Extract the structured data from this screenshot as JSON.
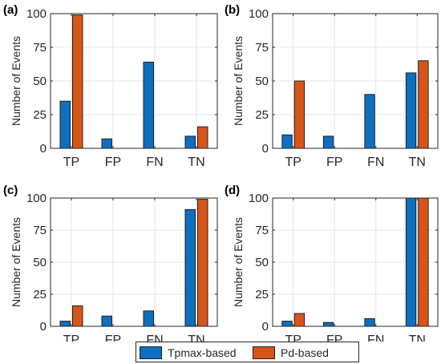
{
  "colors": {
    "series1": "#0e6fc0",
    "series2": "#d85518",
    "grid": "#e6e6e6",
    "axis": "#262626"
  },
  "legend": {
    "placement": "bottom-center",
    "series1": "Tpmax-based",
    "series2": "Pd-based"
  },
  "chart_data": [
    {
      "type": "bar",
      "panel_label": "(a)",
      "ylabel": "Number of Events",
      "categories": [
        "TP",
        "FP",
        "FN",
        "TN"
      ],
      "ylim": [
        0,
        100
      ],
      "yticks": [
        0,
        25,
        50,
        75,
        100
      ],
      "grid": true,
      "series": [
        {
          "name": "Tpmax-based",
          "values": [
            35,
            7,
            64,
            9
          ]
        },
        {
          "name": "Pd-based",
          "values": [
            99,
            0,
            0,
            16
          ]
        }
      ]
    },
    {
      "type": "bar",
      "panel_label": "(b)",
      "ylabel": "Number of Events",
      "categories": [
        "TP",
        "FP",
        "FN",
        "TN"
      ],
      "ylim": [
        0,
        100
      ],
      "yticks": [
        0,
        25,
        50,
        75,
        100
      ],
      "grid": true,
      "series": [
        {
          "name": "Tpmax-based",
          "values": [
            10,
            9,
            40,
            56
          ]
        },
        {
          "name": "Pd-based",
          "values": [
            50,
            0,
            0,
            65
          ]
        }
      ]
    },
    {
      "type": "bar",
      "panel_label": "(c)",
      "ylabel": "Number of Events",
      "categories": [
        "TP",
        "FP",
        "FN",
        "TN"
      ],
      "ylim": [
        0,
        100
      ],
      "yticks": [
        0,
        25,
        50,
        75,
        100
      ],
      "grid": true,
      "series": [
        {
          "name": "Tpmax-based",
          "values": [
            4,
            8,
            12,
            91
          ]
        },
        {
          "name": "Pd-based",
          "values": [
            16,
            0,
            0,
            99
          ]
        }
      ]
    },
    {
      "type": "bar",
      "panel_label": "(d)",
      "ylabel": "Number of Events",
      "categories": [
        "TP",
        "FP",
        "FN",
        "TN"
      ],
      "ylim": [
        0,
        100
      ],
      "yticks": [
        0,
        25,
        50,
        75,
        100
      ],
      "grid": true,
      "series": [
        {
          "name": "Tpmax-based",
          "values": [
            4,
            3,
            6,
            100
          ]
        },
        {
          "name": "Pd-based",
          "values": [
            10,
            0,
            0,
            100
          ]
        }
      ]
    }
  ]
}
